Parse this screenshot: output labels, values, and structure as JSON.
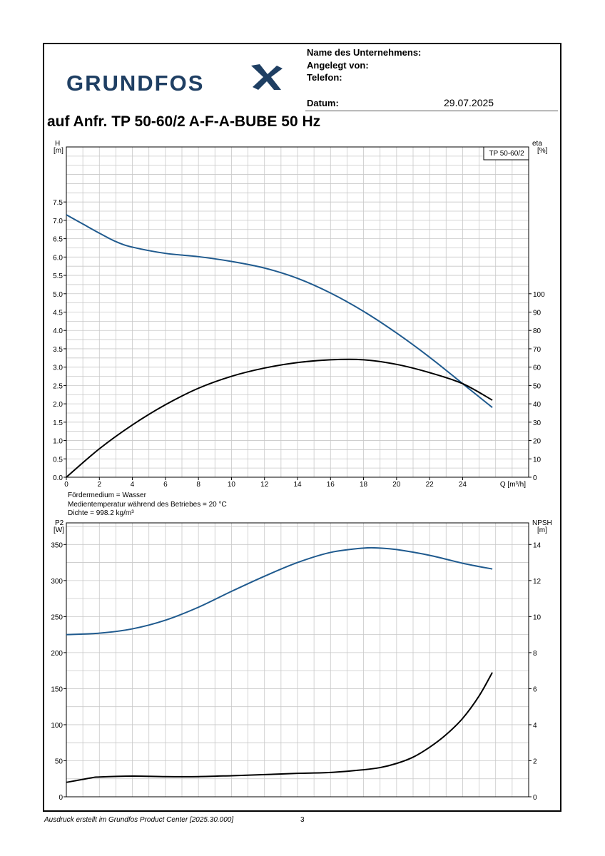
{
  "header": {
    "company_label": "Name des Unternehmens:",
    "created_by_label": "Angelegt von:",
    "phone_label": "Telefon:",
    "date_label": "Datum:",
    "date_value": "29.07.2025",
    "logo_text": "GRUNDFOS"
  },
  "title": "auf Anfr. TP 50-60/2 A-F-A-BUBE 50 Hz",
  "notes": [
    "Fördermedium = Wasser",
    "Medientemperatur während des Betriebes = 20 °C",
    "Dichte = 998.2 kg/m³"
  ],
  "footer": {
    "text": "Ausdruck erstellt im Grundfos Product Center [2025.30.000]",
    "page": "3"
  },
  "colors": {
    "blue": "#1f5a8e",
    "black": "#000000",
    "grid": "#c8c8c8",
    "logo": "#1f3f63"
  },
  "chart_data": [
    {
      "type": "line",
      "legend": "TP 50-60/2",
      "grid": true,
      "xlabel": "Q [m³/h]",
      "xlim": [
        0,
        28
      ],
      "x_ticks": [
        0,
        2,
        4,
        6,
        8,
        10,
        12,
        14,
        16,
        18,
        20,
        22,
        24
      ],
      "ylabel_left": [
        "H",
        "[m]"
      ],
      "ylim_left": [
        0,
        9
      ],
      "y_ticks_left": [
        "0.0",
        "0.5",
        "1.0",
        "1.5",
        "2.0",
        "2.5",
        "3.0",
        "3.5",
        "4.0",
        "4.5",
        "5.0",
        "5.5",
        "6.0",
        "6.5",
        "7.0",
        "7.5"
      ],
      "ylabel_right": [
        "eta",
        "[%]"
      ],
      "ylim_right": [
        0,
        180
      ],
      "y_ticks_right": [
        "0",
        "10",
        "20",
        "30",
        "40",
        "50",
        "60",
        "70",
        "80",
        "90",
        "100"
      ],
      "series": [
        {
          "axis": "left",
          "color": "#1f5a8e",
          "x": [
            0,
            1,
            2,
            3,
            4,
            6,
            8,
            10,
            12,
            14,
            16,
            18,
            20,
            22,
            24,
            25.8
          ],
          "y": [
            7.15,
            6.9,
            6.65,
            6.42,
            6.27,
            6.1,
            6.01,
            5.88,
            5.7,
            5.42,
            5.02,
            4.52,
            3.93,
            3.27,
            2.55,
            1.9
          ]
        },
        {
          "axis": "right",
          "color": "#000000",
          "x": [
            0,
            2,
            4,
            6,
            8,
            10,
            12,
            14,
            16,
            18,
            20,
            22,
            24,
            25.8
          ],
          "y": [
            0,
            15.5,
            28.5,
            39.5,
            48.5,
            55,
            59.5,
            62.5,
            64,
            64,
            61.5,
            57,
            51,
            42
          ]
        }
      ]
    },
    {
      "type": "line",
      "grid": true,
      "xlim": [
        0,
        28
      ],
      "ylabel_left": [
        "P2",
        "[W]"
      ],
      "ylim_left": [
        0,
        380
      ],
      "y_ticks_left": [
        "0",
        "50",
        "100",
        "150",
        "200",
        "250",
        "300",
        "350"
      ],
      "ylabel_right": [
        "NPSH",
        "[m]"
      ],
      "ylim_right": [
        0,
        15.2
      ],
      "y_ticks_right": [
        "0",
        "2",
        "4",
        "6",
        "8",
        "10",
        "12",
        "14"
      ],
      "series": [
        {
          "axis": "left",
          "color": "#1f5a8e",
          "x": [
            0,
            2,
            4,
            6,
            8,
            10,
            12,
            14,
            16,
            18,
            19,
            20,
            22,
            24,
            25.8
          ],
          "y": [
            225,
            227,
            233,
            245,
            263,
            285,
            306,
            325,
            339,
            345,
            345,
            343,
            335,
            324,
            316
          ]
        },
        {
          "axis": "right",
          "color": "#000000",
          "x": [
            0,
            1.5,
            2,
            4,
            6,
            8,
            10,
            12,
            14,
            16,
            18,
            19,
            20,
            21,
            22,
            23,
            24,
            25,
            25.8
          ],
          "y": [
            0.8,
            1.05,
            1.1,
            1.15,
            1.12,
            1.12,
            1.17,
            1.23,
            1.3,
            1.35,
            1.5,
            1.62,
            1.85,
            2.2,
            2.75,
            3.45,
            4.35,
            5.6,
            6.9
          ]
        }
      ]
    }
  ]
}
